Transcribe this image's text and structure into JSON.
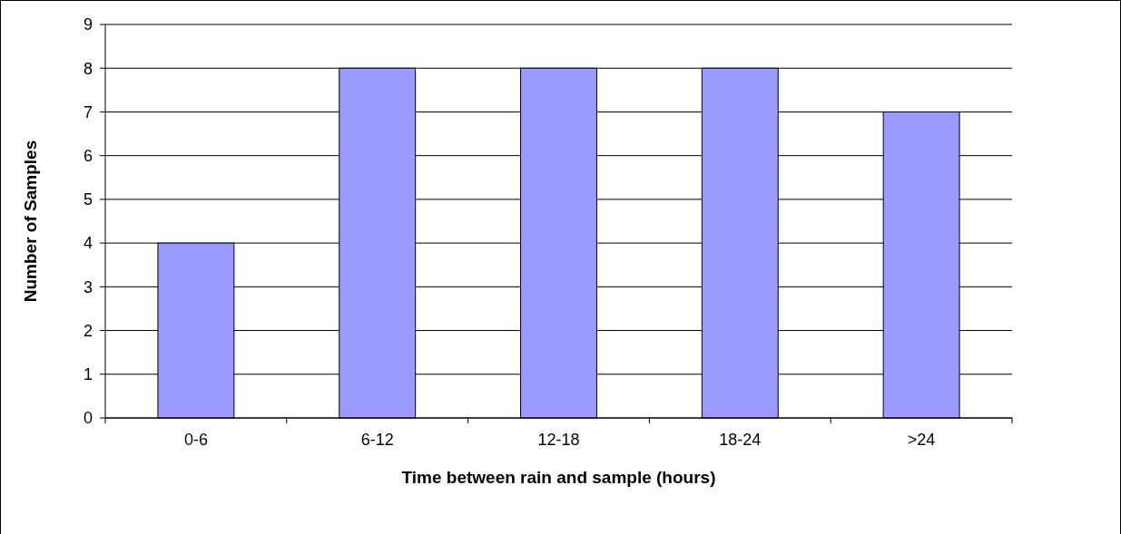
{
  "chart_data": {
    "type": "bar",
    "xlabel": "Time between rain and sample (hours)",
    "ylabel": "Number of Samples",
    "categories": [
      "0-6",
      "6-12",
      "12-18",
      "18-24",
      ">24"
    ],
    "values": [
      4,
      8,
      8,
      8,
      7
    ],
    "color": "#9999ff",
    "ylim": [
      0,
      9
    ],
    "yticks": [
      0,
      1,
      2,
      3,
      4,
      5,
      6,
      7,
      8,
      9
    ],
    "grid": "y"
  }
}
